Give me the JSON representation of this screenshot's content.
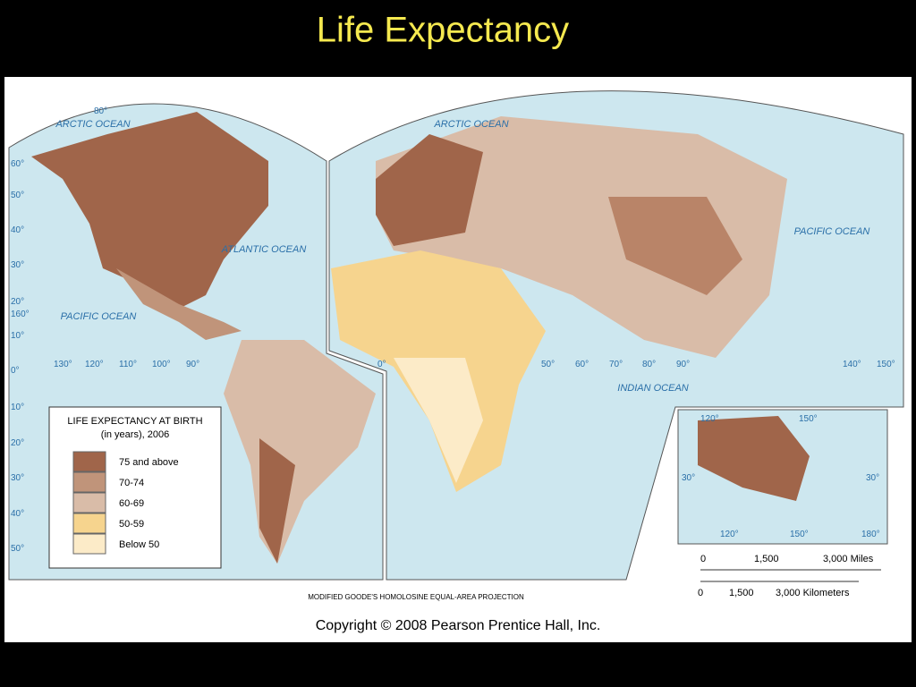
{
  "title": "Life Expectancy",
  "legend": {
    "title": "LIFE EXPECTANCY AT BIRTH",
    "subtitle": "(in years), 2006",
    "items": [
      {
        "label": "75 and above",
        "color": "#a0654a"
      },
      {
        "label": "70-74",
        "color": "#c0947a"
      },
      {
        "label": "60-69",
        "color": "#d9bca8"
      },
      {
        "label": "50-59",
        "color": "#f6d48e"
      },
      {
        "label": "Below 50",
        "color": "#fcebc8"
      }
    ]
  },
  "oceans": [
    "ARCTIC OCEAN",
    "ARCTIC OCEAN",
    "ATLANTIC OCEAN",
    "PACIFIC OCEAN",
    "PACIFIC OCEAN",
    "INDIAN OCEAN"
  ],
  "lat_labels_left": [
    "80°",
    "60°",
    "50°",
    "40°",
    "30°",
    "20°",
    "10°",
    "0°",
    "10°",
    "20°",
    "30°",
    "40°",
    "50°"
  ],
  "lon_labels": [
    "160°",
    "130°",
    "120°",
    "110°",
    "100°",
    "90°",
    "0°",
    "50°",
    "60°",
    "70°",
    "80°",
    "90°",
    "140°",
    "150°"
  ],
  "inset_labels": [
    "120°",
    "150°",
    "30°",
    "30°",
    "120°",
    "150°",
    "180°"
  ],
  "scale": {
    "miles": [
      "0",
      "1,500",
      "3,000 Miles"
    ],
    "km": [
      "0",
      "1,500",
      "3,000 Kilometers"
    ]
  },
  "projection": "MODIFIED GOODE'S HOMOLOSINE EQUAL-AREA PROJECTION",
  "copyright": "Copyright © 2008 Pearson Prentice Hall, Inc."
}
